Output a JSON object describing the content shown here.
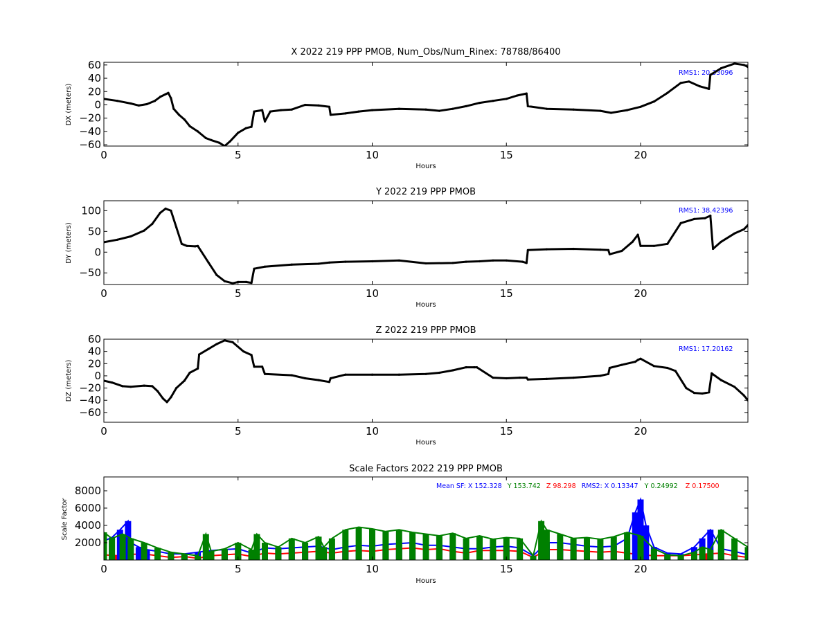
{
  "chart_data": [
    {
      "type": "scatter",
      "title": "X 2022 219 PPP  PMOB, Num_Obs/Num_Rinex: 78788/86400",
      "xlabel": "Hours",
      "ylabel": "DX (meters)",
      "xlim": [
        0,
        24
      ],
      "ylim": [
        -62,
        64
      ],
      "xticks": [
        0,
        5,
        10,
        15,
        20
      ],
      "yticks": [
        -60,
        -40,
        -20,
        0,
        20,
        40,
        60
      ],
      "annotation": "RMS1: 20.33096",
      "annotation_color": "#0000ff",
      "series": [
        {
          "color": "#000000",
          "x": [
            0,
            0.5,
            1.0,
            1.3,
            1.6,
            1.9,
            2.1,
            2.3,
            2.4,
            2.5,
            2.6,
            2.8,
            3.0,
            3.2,
            3.5,
            3.8,
            4.0,
            4.3,
            4.5,
            4.7,
            5.0,
            5.3,
            5.5,
            5.6,
            5.9,
            6.0,
            6.2,
            6.6,
            7.0,
            7.5,
            8.0,
            8.4,
            8.45,
            9.0,
            9.5,
            10.0,
            11.0,
            12.0,
            12.5,
            13.0,
            13.5,
            14.0,
            14.5,
            15.0,
            15.4,
            15.75,
            15.8,
            16.5,
            17.5,
            18.5,
            18.9,
            19.5,
            20.0,
            20.5,
            21.0,
            21.5,
            21.8,
            22.2,
            22.55,
            22.6,
            23.0,
            23.5,
            23.85,
            24.0
          ],
          "y": [
            9,
            6,
            2,
            -1,
            1,
            6,
            12,
            16,
            18,
            10,
            -6,
            -15,
            -22,
            -32,
            -40,
            -50,
            -53,
            -57,
            -62,
            -55,
            -42,
            -35,
            -33,
            -10,
            -8,
            -25,
            -10,
            -8,
            -7,
            0,
            -1,
            -3,
            -15,
            -13,
            -10,
            -8,
            -6,
            -7,
            -9,
            -6,
            -2,
            3,
            6,
            9,
            14,
            17,
            -2,
            -6,
            -7,
            -9,
            -12,
            -8,
            -3,
            5,
            18,
            33,
            35,
            28,
            24,
            45,
            55,
            62,
            60,
            57
          ]
        }
      ]
    },
    {
      "type": "scatter",
      "title": "Y 2022 219 PPP  PMOB",
      "xlabel": "Hours",
      "ylabel": "DY (meters)",
      "xlim": [
        0,
        24
      ],
      "ylim": [
        -78,
        124
      ],
      "xticks": [
        0,
        5,
        10,
        15,
        20
      ],
      "yticks": [
        -50,
        0,
        50,
        100
      ],
      "annotation": "RMS1: 38.42396",
      "annotation_color": "#0000ff",
      "series": [
        {
          "color": "#000000",
          "x": [
            0,
            0.5,
            1.0,
            1.5,
            1.8,
            2.1,
            2.3,
            2.5,
            2.7,
            2.9,
            3.1,
            3.4,
            3.5,
            3.9,
            4.2,
            4.5,
            4.8,
            5.0,
            5.3,
            5.5,
            5.6,
            6.0,
            7.0,
            8.0,
            8.4,
            9.0,
            10.0,
            11.0,
            12.0,
            13.0,
            13.5,
            14.0,
            14.5,
            15.0,
            15.6,
            15.75,
            15.8,
            16.5,
            17.5,
            18.5,
            18.8,
            18.85,
            19.3,
            19.7,
            19.9,
            20.0,
            20.5,
            21.0,
            21.5,
            22.0,
            22.4,
            22.6,
            22.7,
            23.0,
            23.5,
            23.85,
            24.0
          ],
          "y": [
            24,
            30,
            38,
            52,
            68,
            95,
            105,
            100,
            60,
            20,
            15,
            14,
            15,
            -25,
            -55,
            -70,
            -75,
            -72,
            -72,
            -74,
            -40,
            -35,
            -30,
            -28,
            -25,
            -23,
            -22,
            -20,
            -27,
            -26,
            -23,
            -22,
            -20,
            -20,
            -23,
            -26,
            5,
            7,
            8,
            6,
            5,
            -5,
            3,
            25,
            42,
            15,
            15,
            20,
            70,
            80,
            82,
            88,
            8,
            25,
            45,
            55,
            65
          ]
        }
      ]
    },
    {
      "type": "scatter",
      "title": "Z 2022 219 PPP  PMOB",
      "xlabel": "Hours",
      "ylabel": "DZ (meters)",
      "xlim": [
        0,
        24
      ],
      "ylim": [
        -76,
        60
      ],
      "xticks": [
        0,
        5,
        10,
        15,
        20
      ],
      "yticks": [
        -60,
        -40,
        -20,
        0,
        20,
        40,
        60
      ],
      "annotation": "RMS1: 17.20162",
      "annotation_color": "#0000ff",
      "series": [
        {
          "color": "#000000",
          "x": [
            0,
            0.3,
            0.7,
            1.0,
            1.5,
            1.8,
            2.0,
            2.2,
            2.35,
            2.5,
            2.7,
            3.0,
            3.2,
            3.5,
            3.55,
            3.9,
            4.2,
            4.5,
            4.8,
            5.2,
            5.5,
            5.6,
            5.9,
            6.0,
            7.0,
            7.5,
            8.0,
            8.4,
            8.45,
            9.0,
            10.0,
            11.0,
            12.0,
            12.5,
            13.0,
            13.5,
            13.8,
            13.9,
            14.5,
            15.0,
            15.5,
            15.75,
            15.8,
            16.5,
            17.5,
            18.5,
            18.8,
            18.85,
            19.3,
            19.8,
            19.9,
            20.0,
            20.5,
            21.0,
            21.3,
            21.7,
            22.0,
            22.3,
            22.55,
            22.65,
            23.0,
            23.5,
            23.85,
            24.0
          ],
          "y": [
            -8,
            -11,
            -17,
            -18,
            -16,
            -17,
            -25,
            -37,
            -43,
            -35,
            -20,
            -8,
            5,
            12,
            35,
            44,
            52,
            58,
            55,
            40,
            34,
            15,
            15,
            3,
            1,
            -4,
            -7,
            -10,
            -4,
            2,
            2,
            2,
            3,
            5,
            9,
            14,
            14,
            14,
            -3,
            -4,
            -3,
            -3,
            -6,
            -5,
            -3,
            0,
            3,
            13,
            18,
            23,
            26,
            28,
            16,
            13,
            8,
            -20,
            -28,
            -29,
            -27,
            4,
            -7,
            -18,
            -32,
            -40
          ]
        }
      ]
    },
    {
      "type": "scatter",
      "title": "Scale Factors 2022 219 PPP  PMOB",
      "xlabel": "Hours",
      "ylabel": "Scale Factor",
      "xlim": [
        0,
        24
      ],
      "ylim": [
        0,
        9600
      ],
      "xticks": [
        0,
        5,
        10,
        15,
        20
      ],
      "yticks": [
        2000,
        4000,
        6000,
        8000
      ],
      "annotation_parts": [
        {
          "text": "Mean SF: X 152.328",
          "color": "#0000ff"
        },
        {
          "text": "Y 153.742",
          "color": "#008000"
        },
        {
          "text": "Z  98.298",
          "color": "#ff0000"
        },
        {
          "text": "RMS2: X  0.13347",
          "color": "#0000ff"
        },
        {
          "text": "Y  0.24992",
          "color": "#008000"
        },
        {
          "text": "Z  0.17500",
          "color": "#ff0000"
        }
      ],
      "series": [
        {
          "name": "Z",
          "color": "#ff0000",
          "x": [
            0,
            0.5,
            1.0,
            1.5,
            2.0,
            2.5,
            3.0,
            3.5,
            4.0,
            4.5,
            5.0,
            5.5,
            6.0,
            6.5,
            7.0,
            7.5,
            8.0,
            8.5,
            9.0,
            9.5,
            10.0,
            10.5,
            11.0,
            11.5,
            12.0,
            12.5,
            13.0,
            13.5,
            14.0,
            14.5,
            15.0,
            15.5,
            16.0,
            16.5,
            17.0,
            17.5,
            18.0,
            18.5,
            19.0,
            19.5,
            20.0,
            20.5,
            21.0,
            21.5,
            22.0,
            22.5,
            23.0,
            23.5,
            24.0
          ],
          "y": [
            600,
            500,
            650,
            700,
            500,
            300,
            400,
            200,
            500,
            600,
            700,
            400,
            800,
            700,
            800,
            900,
            1000,
            800,
            1000,
            1100,
            1000,
            1200,
            1300,
            1400,
            1200,
            1300,
            1000,
            800,
            1100,
            1100,
            1100,
            1000,
            300,
            1200,
            1200,
            1100,
            1000,
            900,
            1000,
            800,
            600,
            500,
            500,
            500,
            600,
            700,
            800,
            500,
            300
          ]
        },
        {
          "name": "X",
          "color": "#0000ff",
          "x": [
            0,
            0.3,
            0.6,
            0.9,
            1.0,
            1.3,
            1.6,
            2.0,
            2.5,
            3.0,
            3.5,
            4.0,
            4.5,
            5.0,
            5.5,
            6.0,
            6.5,
            7.0,
            7.5,
            8.0,
            8.5,
            9.0,
            9.5,
            10.0,
            10.5,
            11.0,
            11.5,
            12.0,
            12.5,
            13.0,
            13.5,
            14.0,
            14.5,
            15.0,
            15.5,
            16.0,
            16.5,
            17.0,
            17.5,
            18.0,
            18.5,
            19.0,
            19.5,
            19.8,
            20.0,
            20.2,
            20.5,
            21.0,
            21.5,
            22.0,
            22.3,
            22.6,
            23.0,
            23.5,
            24.0
          ],
          "y": [
            2200,
            2600,
            3500,
            4500,
            2000,
            1500,
            1200,
            1000,
            700,
            700,
            900,
            1100,
            1200,
            1300,
            800,
            1400,
            1300,
            1400,
            1500,
            1600,
            1200,
            1500,
            1700,
            1600,
            1800,
            1900,
            2000,
            1700,
            1700,
            1500,
            1300,
            1300,
            1500,
            1600,
            1400,
            500,
            2000,
            2000,
            1800,
            1600,
            1500,
            1600,
            2500,
            5500,
            7000,
            4000,
            1500,
            800,
            700,
            1500,
            2500,
            3500,
            1300,
            1000,
            600
          ]
        },
        {
          "name": "Y",
          "color": "#008000",
          "x": [
            0,
            0.3,
            0.7,
            1.0,
            1.5,
            2.0,
            2.5,
            3.0,
            3.5,
            3.8,
            4.0,
            4.5,
            5.0,
            5.5,
            5.7,
            6.0,
            6.5,
            7.0,
            7.5,
            8.0,
            8.2,
            8.5,
            9.0,
            9.5,
            10.0,
            10.5,
            11.0,
            11.5,
            12.0,
            12.5,
            13.0,
            13.5,
            14.0,
            14.5,
            15.0,
            15.5,
            16.0,
            16.3,
            16.5,
            17.0,
            17.5,
            18.0,
            18.5,
            19.0,
            19.5,
            20.0,
            20.5,
            21.0,
            21.5,
            22.0,
            22.3,
            22.6,
            23.0,
            23.5,
            24.0
          ],
          "y": [
            3200,
            2500,
            3000,
            2500,
            2000,
            1400,
            900,
            700,
            500,
            3000,
            1000,
            1300,
            2000,
            1200,
            3000,
            2000,
            1500,
            2500,
            2000,
            2700,
            1500,
            2500,
            3500,
            3800,
            3600,
            3300,
            3500,
            3200,
            3000,
            2800,
            3100,
            2500,
            2800,
            2400,
            2600,
            2500,
            500,
            4500,
            3500,
            3000,
            2500,
            2600,
            2400,
            2700,
            3200,
            2800,
            1300,
            600,
            500,
            900,
            1500,
            1200,
            3500,
            2500,
            1500
          ]
        }
      ]
    }
  ]
}
